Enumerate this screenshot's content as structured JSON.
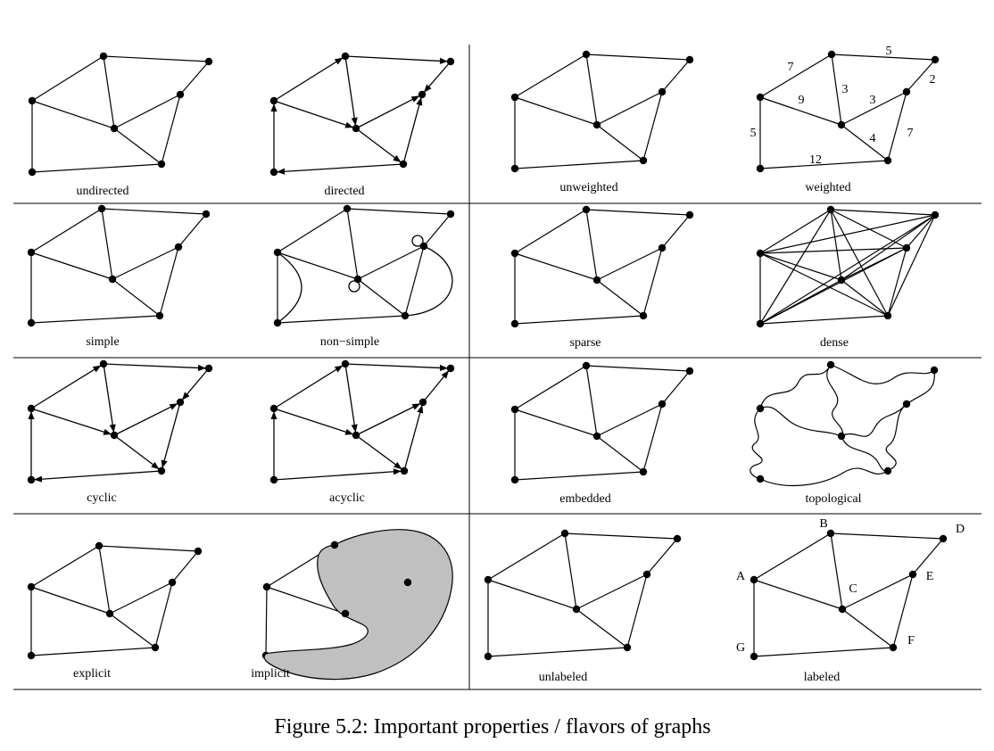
{
  "caption": "Figure 5.2: Important properties / flavors of graphs",
  "colors": {
    "ink": "#000000",
    "region_fill": "#c0c0c0",
    "background": "#ffffff"
  },
  "panels": {
    "undirected": "undirected",
    "directed": "directed",
    "unweighted": "unweighted",
    "weighted": "weighted",
    "simple": "simple",
    "non_simple": "non−simple",
    "sparse": "sparse",
    "dense": "dense",
    "cyclic": "cyclic",
    "acyclic": "acyclic",
    "embedded": "embedded",
    "topological": "topological",
    "explicit": "explicit",
    "implicit": "implicit",
    "unlabeled": "unlabeled",
    "labeled": "labeled"
  },
  "edge_weights": [
    "7",
    "5",
    "2",
    "9",
    "3",
    "3",
    "5",
    "4",
    "7",
    "12"
  ],
  "vertex_labels": [
    "A",
    "B",
    "C",
    "D",
    "E",
    "F",
    "G"
  ]
}
